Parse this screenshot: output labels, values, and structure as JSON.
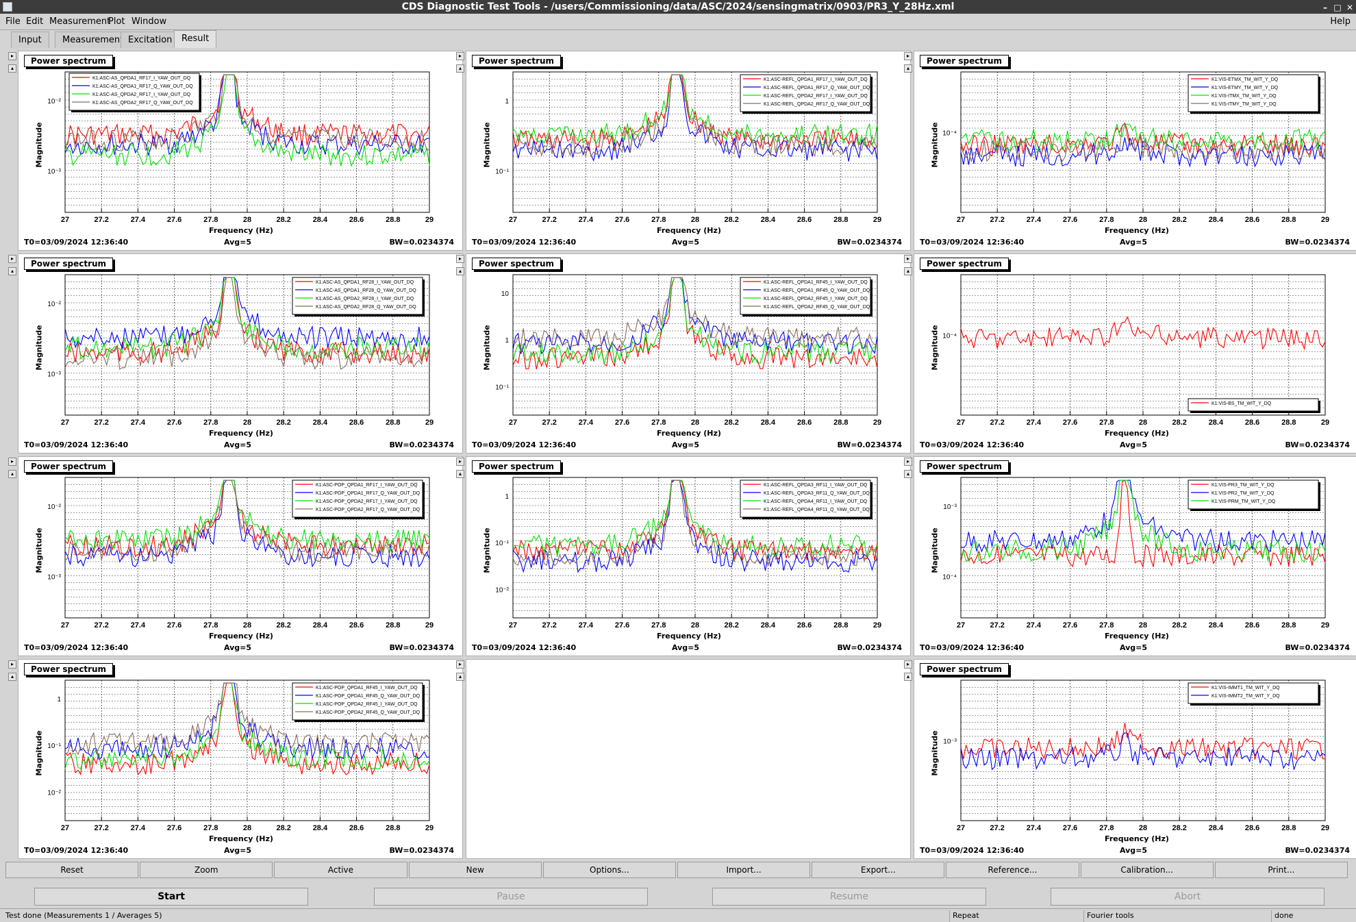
{
  "window": {
    "title": "CDS Diagnostic Test Tools - /users/Commissioning/data/ASC/2024/sensingmatrix/0903/PR3_Y_28Hz.xml",
    "help": "Help"
  },
  "menu": [
    "File",
    "Edit",
    "Measurement",
    "Plot",
    "Window"
  ],
  "tabs": [
    {
      "label": "Input"
    },
    {
      "label": "Measurement"
    },
    {
      "label": "Excitation"
    },
    {
      "label": "Result",
      "active": true
    }
  ],
  "colors": {
    "red": "#ff0000",
    "blue": "#0000ff",
    "green": "#00e000",
    "brown": "#8b6c5c"
  },
  "common": {
    "panel_title": "Power spectrum",
    "xlabel": "Frequency (Hz)",
    "ylabel": "Magnitude",
    "t0": "T0=03/09/2024 12:36:40",
    "avg": "Avg=5",
    "bw": "BW=0.0234374",
    "x_ticks": [
      "27",
      "27.2",
      "27.4",
      "27.6",
      "27.8",
      "28",
      "28.2",
      "28.4",
      "28.6",
      "28.8",
      "29"
    ]
  },
  "panels": [
    {
      "yticks": [
        "10⁻²",
        "10⁻³"
      ],
      "legend": [
        "K1:ASC-AS_QPDA1_RF17_I_YAW_OUT_DQ",
        "K1:ASC-AS_QPDA1_RF17_Q_YAW_OUT_DQ",
        "K1:ASC-AS_QPDA2_RF17_I_YAW_OUT_DQ",
        "K1:ASC-AS_QPDA2_RF17_Q_YAW_OUT_DQ"
      ],
      "legend_pos": "top-left"
    },
    {
      "yticks": [
        "1",
        "10⁻¹"
      ],
      "legend": [
        "K1:ASC-REFL_QPDA1_RF17_I_YAW_OUT_DQ",
        "K1:ASC-REFL_QPDA1_RF17_Q_YAW_OUT_DQ",
        "K1:ASC-REFL_QPDA2_RF17_I_YAW_OUT_DQ",
        "K1:ASC-REFL_QPDA2_RF17_Q_YAW_OUT_DQ"
      ],
      "legend_pos": "top-right"
    },
    {
      "yticks": [
        "10⁻⁴"
      ],
      "legend": [
        "K1:VIS-ETMX_TM_WIT_Y_DQ",
        "K1:VIS-ETMY_TM_WIT_Y_DQ",
        "K1:VIS-ITMX_TM_WIT_Y_DQ",
        "K1:VIS-ITMY_TM_WIT_Y_DQ"
      ],
      "legend_pos": "top-right"
    },
    {
      "yticks": [
        "10⁻²",
        "10⁻³"
      ],
      "legend": [
        "K1:ASC-AS_QPDA1_RF28_I_YAW_OUT_DQ",
        "K1:ASC-AS_QPDA1_RF28_Q_YAW_OUT_DQ",
        "K1:ASC-AS_QPDA2_RF28_I_YAW_OUT_DQ",
        "K1:ASC-AS_QPDA2_RF28_Q_YAW_OUT_DQ"
      ],
      "legend_pos": "top-right"
    },
    {
      "yticks": [
        "10",
        "1",
        "10⁻¹"
      ],
      "legend": [
        "K1:ASC-REFL_QPDA1_RF45_I_YAW_OUT_DQ",
        "K1:ASC-REFL_QPDA1_RF45_Q_YAW_OUT_DQ",
        "K1:ASC-REFL_QPDA2_RF45_I_YAW_OUT_DQ",
        "K1:ASC-REFL_QPDA2_RF45_Q_YAW_OUT_DQ"
      ],
      "legend_pos": "top-right"
    },
    {
      "yticks": [
        "10⁻⁴"
      ],
      "legend": [
        "K1:VIS-BS_TM_WIT_Y_DQ"
      ],
      "legend_pos": "bottom-right"
    },
    {
      "yticks": [
        "10⁻²",
        "10⁻³"
      ],
      "legend": [
        "K1:ASC-POP_QPDA1_RF17_I_YAW_OUT_DQ",
        "K1:ASC-POP_QPDA1_RF17_Q_YAW_OUT_DQ",
        "K1:ASC-POP_QPDA2_RF17_I_YAW_OUT_DQ",
        "K1:ASC-POP_QPDA2_RF17_Q_YAW_OUT_DQ"
      ],
      "legend_pos": "top-right"
    },
    {
      "yticks": [
        "1",
        "10⁻¹",
        "10⁻²"
      ],
      "legend": [
        "K1:ASC-REFL_QPDA3_RF11_I_YAW_OUT_DQ",
        "K1:ASC-REFL_QPDA3_RF11_Q_YAW_OUT_DQ",
        "K1:ASC-REFL_QPDA4_RF11_I_YAW_OUT_DQ",
        "K1:ASC-REFL_QPDA4_RF11_Q_YAW_OUT_DQ"
      ],
      "legend_pos": "top-right"
    },
    {
      "yticks": [
        "10⁻³",
        "10⁻⁴"
      ],
      "legend": [
        "K1:VIS-PR3_TM_WIT_Y_DQ",
        "K1:VIS-PR2_TM_WIT_Y_DQ",
        "K1:VIS-PRM_TM_WIT_Y_DQ"
      ],
      "legend_pos": "top-right"
    },
    {
      "yticks": [
        "1",
        "10⁻¹",
        "10⁻²"
      ],
      "legend": [
        "K1:ASC-POP_QPDA1_RF45_I_YAW_OUT_DQ",
        "K1:ASC-POP_QPDA1_RF45_Q_YAW_OUT_DQ",
        "K1:ASC-POP_QPDA2_RF45_I_YAW_OUT_DQ",
        "K1:ASC-POP_QPDA2_RF45_Q_YAW_OUT_DQ"
      ],
      "legend_pos": "top-right"
    },
    null,
    {
      "yticks": [
        "10⁻³"
      ],
      "legend": [
        "K1:VIS-IMMT1_TM_WIT_Y_DQ",
        "K1:VIS-IMMT2_TM_WIT_Y_DQ"
      ],
      "legend_pos": "top-right"
    }
  ],
  "toolbar": [
    "Reset",
    "Zoom",
    "Active",
    "New",
    "Options...",
    "Import...",
    "Export...",
    "Reference...",
    "Calibration...",
    "Print..."
  ],
  "controls": [
    "Start",
    "Pause",
    "Resume",
    "Abort"
  ],
  "status": {
    "message": "Test done (Measurements 1 / Averages 5)",
    "mode": "Repeat",
    "tool": "Fourier tools",
    "state": "done"
  }
}
